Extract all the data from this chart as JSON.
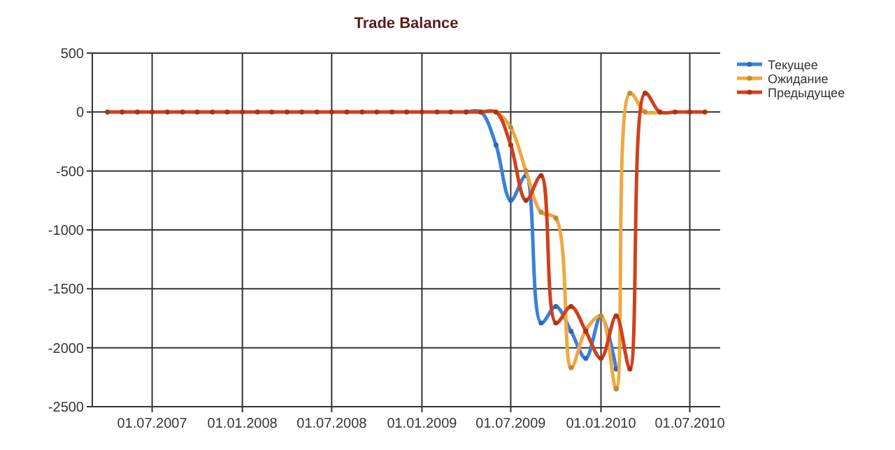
{
  "chart_data": {
    "type": "line",
    "title": "Trade Balance",
    "x": [
      "2007-04-01",
      "2007-05-01",
      "2007-06-01",
      "2007-07-01",
      "2007-08-01",
      "2007-09-01",
      "2007-10-01",
      "2007-11-01",
      "2007-12-01",
      "2008-01-01",
      "2008-02-01",
      "2008-03-01",
      "2008-04-01",
      "2008-05-01",
      "2008-06-01",
      "2008-07-01",
      "2008-08-01",
      "2008-09-01",
      "2008-10-01",
      "2008-11-01",
      "2008-12-01",
      "2009-01-01",
      "2009-02-01",
      "2009-03-01",
      "2009-04-01",
      "2009-05-01",
      "2009-06-01",
      "2009-07-01",
      "2009-08-01",
      "2009-09-01",
      "2009-10-01",
      "2009-11-01",
      "2009-12-01",
      "2010-01-01",
      "2010-02-01",
      "2010-03-01",
      "2010-04-01",
      "2010-05-01",
      "2010-06-01",
      "2010-07-01",
      "2010-08-01"
    ],
    "series": [
      {
        "name": "Текущее",
        "color": "#3a7fdc",
        "values": [
          null,
          null,
          null,
          null,
          null,
          null,
          null,
          null,
          null,
          null,
          null,
          null,
          null,
          null,
          null,
          null,
          null,
          null,
          null,
          null,
          null,
          null,
          null,
          null,
          0,
          0,
          -280,
          -750,
          -540,
          -1790,
          -1650,
          -1860,
          -2090,
          -1730,
          -2180,
          null,
          null,
          null,
          null,
          null,
          null
        ]
      },
      {
        "name": "Ожидание",
        "color": "#f0a840",
        "values": [
          null,
          null,
          null,
          null,
          null,
          null,
          null,
          null,
          null,
          null,
          null,
          null,
          null,
          null,
          null,
          null,
          null,
          null,
          null,
          null,
          null,
          null,
          null,
          null,
          null,
          0,
          0,
          -130,
          -500,
          -850,
          -900,
          -2170,
          -1850,
          -1730,
          -2350,
          160,
          0,
          0,
          null,
          null,
          null
        ]
      },
      {
        "name": "Предыдущее",
        "color": "#d0401c",
        "values": [
          0,
          0,
          0,
          0,
          0,
          0,
          0,
          0,
          0,
          0,
          0,
          0,
          0,
          0,
          0,
          0,
          0,
          0,
          0,
          0,
          0,
          0,
          0,
          0,
          0,
          0,
          0,
          -280,
          -750,
          -540,
          -1790,
          -1650,
          -1860,
          -2090,
          -1730,
          -2180,
          160,
          0,
          0,
          0,
          0
        ]
      }
    ],
    "xlim": [
      "2007-03-01",
      "2010-09-01"
    ],
    "xticks": [
      {
        "value": "2007-07-01",
        "label": "01.07.2007"
      },
      {
        "value": "2008-01-01",
        "label": "01.01.2008"
      },
      {
        "value": "2008-07-01",
        "label": "01.07.2008"
      },
      {
        "value": "2009-01-01",
        "label": "01.01.2009"
      },
      {
        "value": "2009-07-01",
        "label": "01.07.2009"
      },
      {
        "value": "2010-01-01",
        "label": "01.01.2010"
      },
      {
        "value": "2010-07-01",
        "label": "01.07.2010"
      }
    ],
    "ylim": [
      -2500,
      500
    ],
    "yticks": [
      -2500,
      -2000,
      -1500,
      -1000,
      -500,
      0,
      500
    ],
    "grid": true,
    "legend": "top right",
    "marker": "circle",
    "line_style": "solid"
  }
}
